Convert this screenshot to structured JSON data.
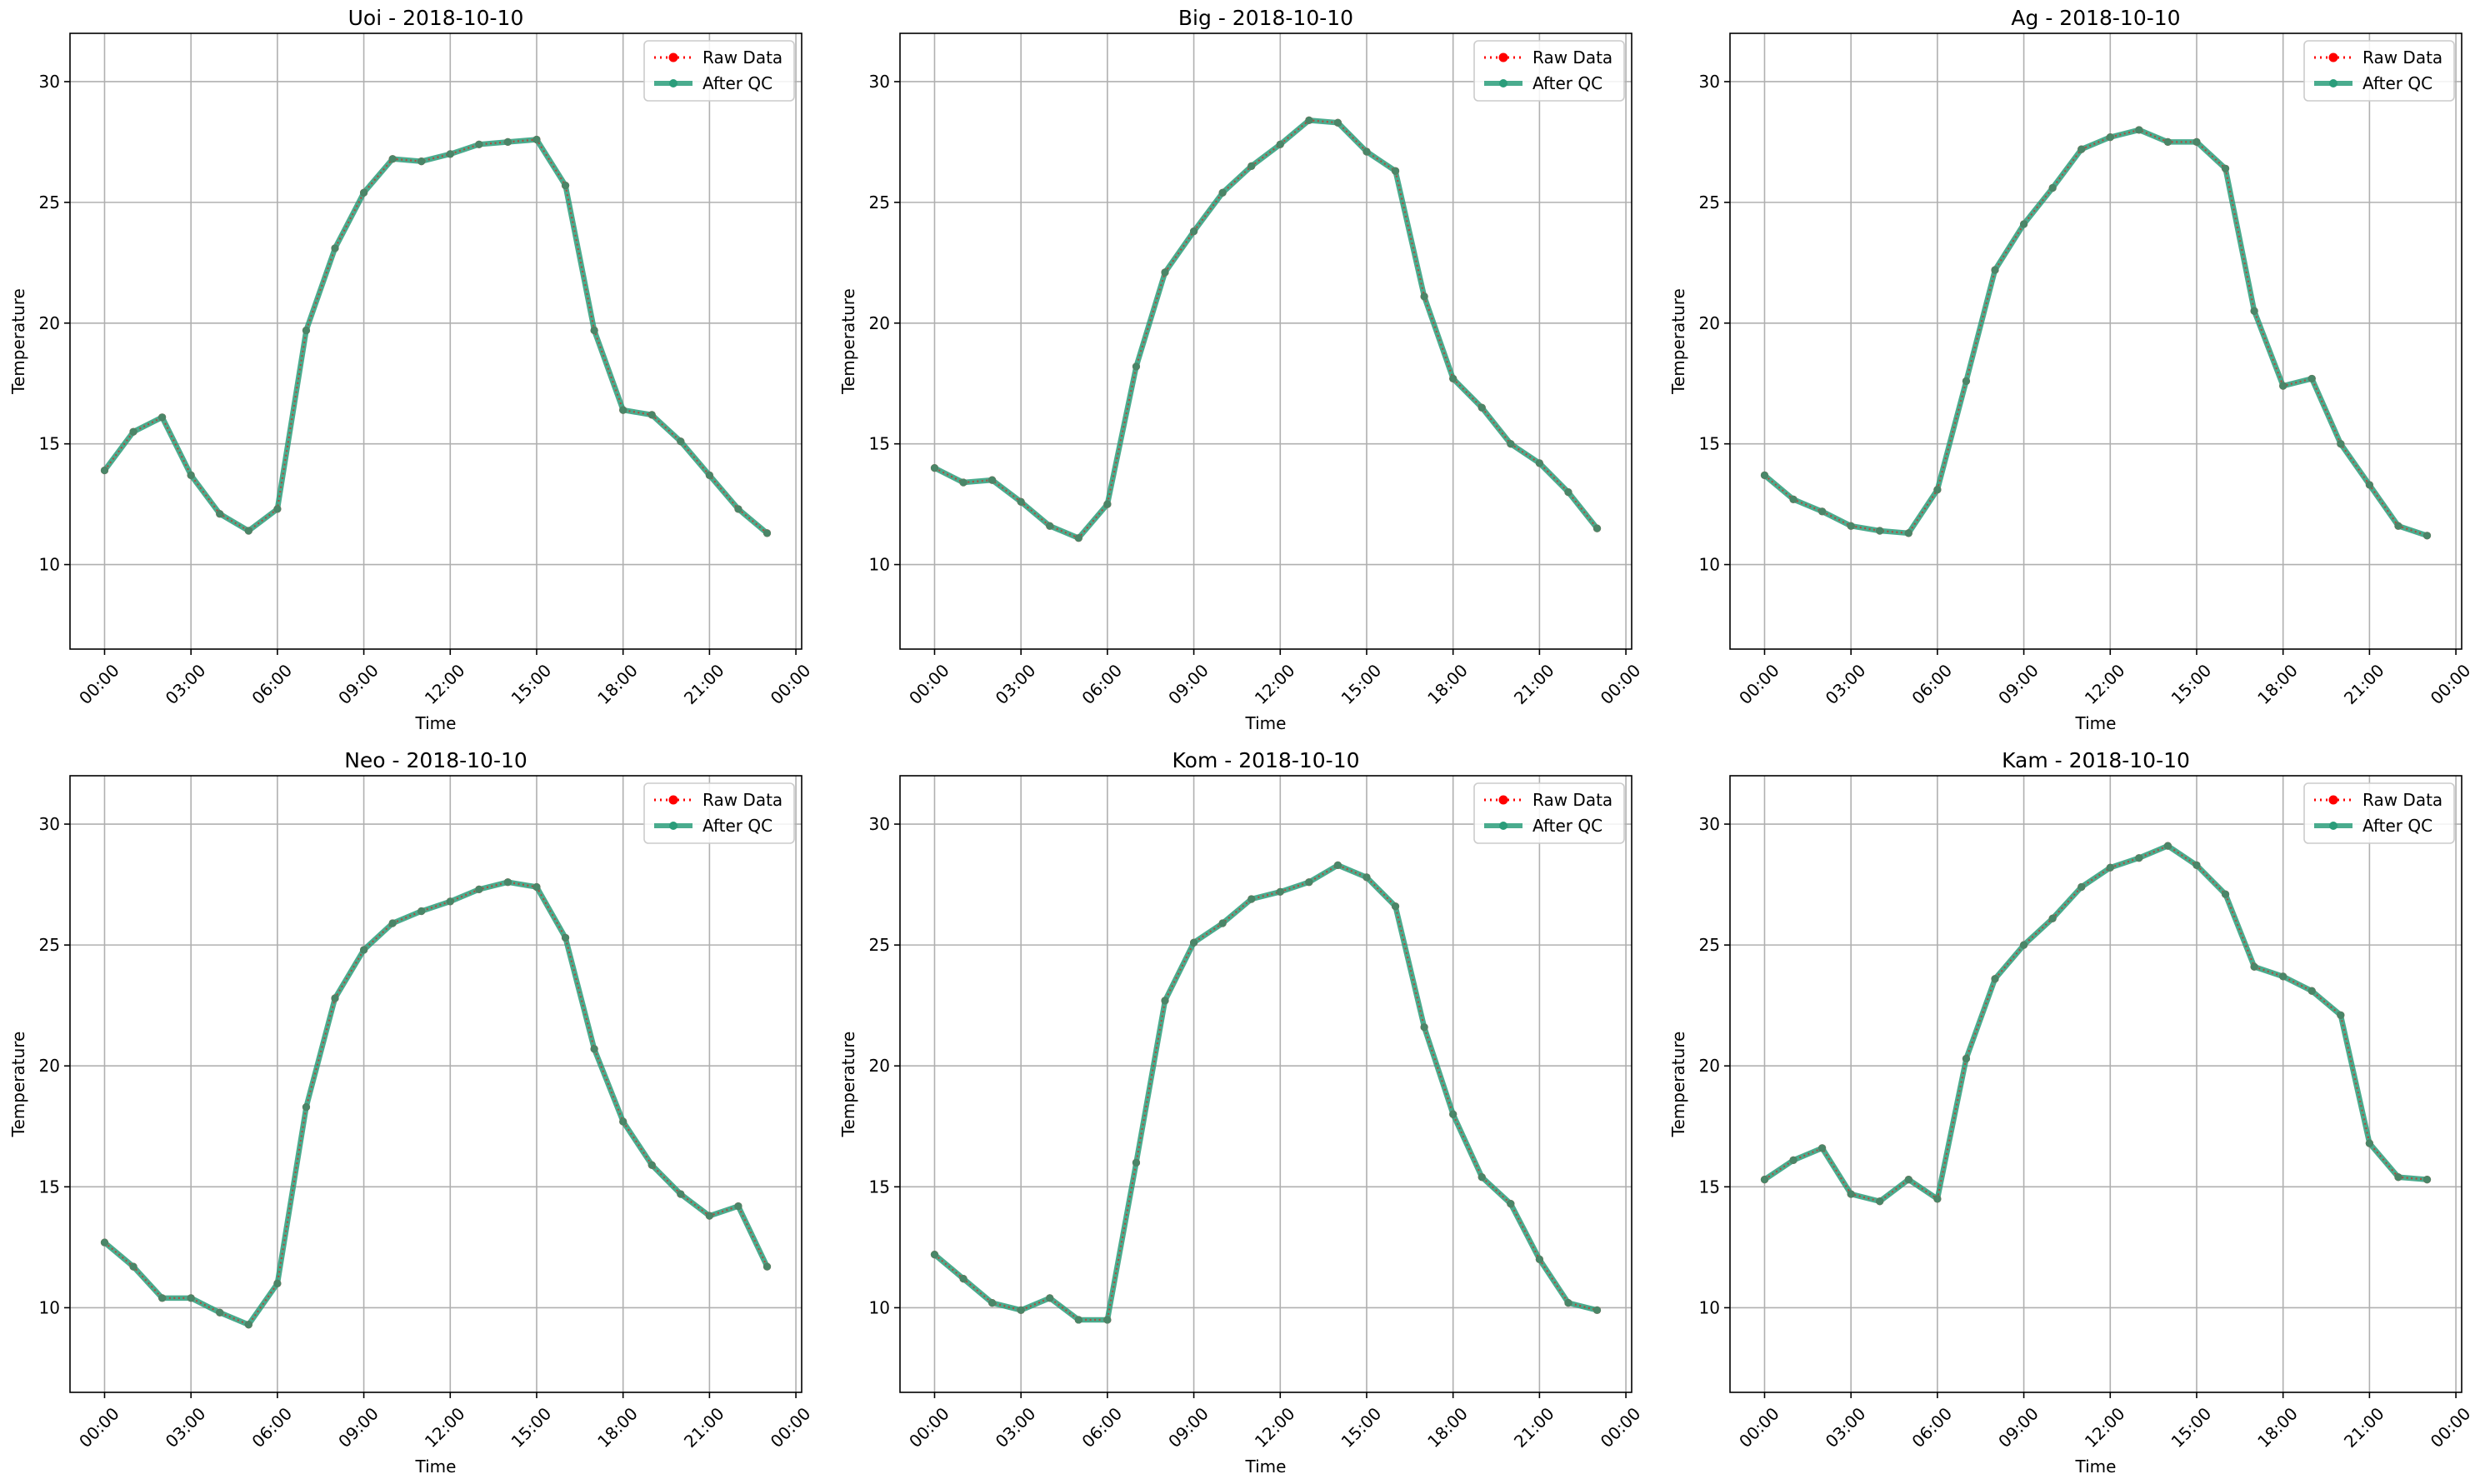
{
  "colors": {
    "raw": "#ff0000",
    "after_qc": "#2a9d7a",
    "grid": "#b0b0b0",
    "axes": "#000000",
    "legend_border": "#cccccc"
  },
  "chart_data": [
    {
      "type": "line",
      "title": "Uoi - 2018-10-10",
      "xlabel": "Time",
      "ylabel": "Temperature",
      "grid": true,
      "legend_position": "top-right",
      "ylim": [
        6.5,
        32
      ],
      "yticks": [
        10,
        15,
        20,
        25,
        30
      ],
      "ytick_labels": [
        "10",
        "15",
        "20",
        "25",
        "30"
      ],
      "xlim_hours": [
        -1.2,
        24.2
      ],
      "xticks_hours": [
        0,
        3,
        6,
        9,
        12,
        15,
        18,
        21,
        24
      ],
      "xtick_labels": [
        "00:00",
        "03:00",
        "06:00",
        "09:00",
        "12:00",
        "15:00",
        "18:00",
        "21:00",
        "00:00"
      ],
      "x": [
        "00:00",
        "01:00",
        "02:00",
        "03:00",
        "04:00",
        "05:00",
        "06:00",
        "07:00",
        "08:00",
        "09:00",
        "10:00",
        "11:00",
        "12:00",
        "13:00",
        "14:00",
        "15:00",
        "16:00",
        "17:00",
        "18:00",
        "19:00",
        "20:00",
        "21:00",
        "22:00",
        "23:00"
      ],
      "series": [
        {
          "name": "Raw Data",
          "style": "dotted-marker",
          "values": [
            13.9,
            15.5,
            16.1,
            13.7,
            12.1,
            11.4,
            12.3,
            19.7,
            23.1,
            25.4,
            26.8,
            26.7,
            27.0,
            27.4,
            27.5,
            27.6,
            25.7,
            19.7,
            16.4,
            16.2,
            15.1,
            13.7,
            12.3,
            11.3
          ]
        },
        {
          "name": "After QC",
          "style": "solid-marker",
          "values": [
            13.9,
            15.5,
            16.1,
            13.7,
            12.1,
            11.4,
            12.3,
            19.7,
            23.1,
            25.4,
            26.8,
            26.7,
            27.0,
            27.4,
            27.5,
            27.6,
            25.7,
            19.7,
            16.4,
            16.2,
            15.1,
            13.7,
            12.3,
            11.3
          ]
        }
      ]
    },
    {
      "type": "line",
      "title": "Big - 2018-10-10",
      "xlabel": "Time",
      "ylabel": "Temperature",
      "grid": true,
      "legend_position": "top-right",
      "ylim": [
        6.5,
        32
      ],
      "yticks": [
        10,
        15,
        20,
        25,
        30
      ],
      "ytick_labels": [
        "10",
        "15",
        "20",
        "25",
        "30"
      ],
      "xlim_hours": [
        -1.2,
        24.2
      ],
      "xticks_hours": [
        0,
        3,
        6,
        9,
        12,
        15,
        18,
        21,
        24
      ],
      "xtick_labels": [
        "00:00",
        "03:00",
        "06:00",
        "09:00",
        "12:00",
        "15:00",
        "18:00",
        "21:00",
        "00:00"
      ],
      "x": [
        "00:00",
        "01:00",
        "02:00",
        "03:00",
        "04:00",
        "05:00",
        "06:00",
        "07:00",
        "08:00",
        "09:00",
        "10:00",
        "11:00",
        "12:00",
        "13:00",
        "14:00",
        "15:00",
        "16:00",
        "17:00",
        "18:00",
        "19:00",
        "20:00",
        "21:00",
        "22:00",
        "23:00"
      ],
      "series": [
        {
          "name": "Raw Data",
          "style": "dotted-marker",
          "values": [
            14.0,
            13.4,
            13.5,
            12.6,
            11.6,
            11.1,
            12.5,
            18.2,
            22.1,
            23.8,
            25.4,
            26.5,
            27.4,
            28.4,
            28.3,
            27.1,
            26.3,
            21.1,
            17.7,
            16.5,
            15.0,
            14.2,
            13.0,
            11.5
          ]
        },
        {
          "name": "After QC",
          "style": "solid-marker",
          "values": [
            14.0,
            13.4,
            13.5,
            12.6,
            11.6,
            11.1,
            12.5,
            18.2,
            22.1,
            23.8,
            25.4,
            26.5,
            27.4,
            28.4,
            28.3,
            27.1,
            26.3,
            21.1,
            17.7,
            16.5,
            15.0,
            14.2,
            13.0,
            11.5
          ]
        }
      ]
    },
    {
      "type": "line",
      "title": "Ag - 2018-10-10",
      "xlabel": "Time",
      "ylabel": "Temperature",
      "grid": true,
      "legend_position": "top-right",
      "ylim": [
        6.5,
        32
      ],
      "yticks": [
        10,
        15,
        20,
        25,
        30
      ],
      "ytick_labels": [
        "10",
        "15",
        "20",
        "25",
        "30"
      ],
      "xlim_hours": [
        -1.2,
        24.2
      ],
      "xticks_hours": [
        0,
        3,
        6,
        9,
        12,
        15,
        18,
        21,
        24
      ],
      "xtick_labels": [
        "00:00",
        "03:00",
        "06:00",
        "09:00",
        "12:00",
        "15:00",
        "18:00",
        "21:00",
        "00:00"
      ],
      "x": [
        "00:00",
        "01:00",
        "02:00",
        "03:00",
        "04:00",
        "05:00",
        "06:00",
        "07:00",
        "08:00",
        "09:00",
        "10:00",
        "11:00",
        "12:00",
        "13:00",
        "14:00",
        "15:00",
        "16:00",
        "17:00",
        "18:00",
        "19:00",
        "20:00",
        "21:00",
        "22:00",
        "23:00"
      ],
      "series": [
        {
          "name": "Raw Data",
          "style": "dotted-marker",
          "values": [
            13.7,
            12.7,
            12.2,
            11.6,
            11.4,
            11.3,
            13.1,
            17.6,
            22.2,
            24.1,
            25.6,
            27.2,
            27.7,
            28.0,
            27.5,
            27.5,
            26.4,
            20.5,
            17.4,
            17.7,
            15.0,
            13.3,
            11.6,
            11.2
          ]
        },
        {
          "name": "After QC",
          "style": "solid-marker",
          "values": [
            13.7,
            12.7,
            12.2,
            11.6,
            11.4,
            11.3,
            13.1,
            17.6,
            22.2,
            24.1,
            25.6,
            27.2,
            27.7,
            28.0,
            27.5,
            27.5,
            26.4,
            20.5,
            17.4,
            17.7,
            15.0,
            13.3,
            11.6,
            11.2
          ]
        }
      ]
    },
    {
      "type": "line",
      "title": "Neo - 2018-10-10",
      "xlabel": "Time",
      "ylabel": "Temperature",
      "grid": true,
      "legend_position": "top-right",
      "ylim": [
        6.5,
        32
      ],
      "yticks": [
        10,
        15,
        20,
        25,
        30
      ],
      "ytick_labels": [
        "10",
        "15",
        "20",
        "25",
        "30"
      ],
      "xlim_hours": [
        -1.2,
        24.2
      ],
      "xticks_hours": [
        0,
        3,
        6,
        9,
        12,
        15,
        18,
        21,
        24
      ],
      "xtick_labels": [
        "00:00",
        "03:00",
        "06:00",
        "09:00",
        "12:00",
        "15:00",
        "18:00",
        "21:00",
        "00:00"
      ],
      "x": [
        "00:00",
        "01:00",
        "02:00",
        "03:00",
        "04:00",
        "05:00",
        "06:00",
        "07:00",
        "08:00",
        "09:00",
        "10:00",
        "11:00",
        "12:00",
        "13:00",
        "14:00",
        "15:00",
        "16:00",
        "17:00",
        "18:00",
        "19:00",
        "20:00",
        "21:00",
        "22:00",
        "23:00"
      ],
      "series": [
        {
          "name": "Raw Data",
          "style": "dotted-marker",
          "values": [
            12.7,
            11.7,
            10.4,
            10.4,
            9.8,
            9.3,
            11.0,
            18.3,
            22.8,
            24.8,
            25.9,
            26.4,
            26.8,
            27.3,
            27.6,
            27.4,
            25.3,
            20.7,
            17.7,
            15.9,
            14.7,
            13.8,
            14.2,
            11.7
          ]
        },
        {
          "name": "After QC",
          "style": "solid-marker",
          "values": [
            12.7,
            11.7,
            10.4,
            10.4,
            9.8,
            9.3,
            11.0,
            18.3,
            22.8,
            24.8,
            25.9,
            26.4,
            26.8,
            27.3,
            27.6,
            27.4,
            25.3,
            20.7,
            17.7,
            15.9,
            14.7,
            13.8,
            14.2,
            11.7
          ]
        }
      ]
    },
    {
      "type": "line",
      "title": "Kom - 2018-10-10",
      "xlabel": "Time",
      "ylabel": "Temperature",
      "grid": true,
      "legend_position": "top-right",
      "ylim": [
        6.5,
        32
      ],
      "yticks": [
        10,
        15,
        20,
        25,
        30
      ],
      "ytick_labels": [
        "10",
        "15",
        "20",
        "25",
        "30"
      ],
      "xlim_hours": [
        -1.2,
        24.2
      ],
      "xticks_hours": [
        0,
        3,
        6,
        9,
        12,
        15,
        18,
        21,
        24
      ],
      "xtick_labels": [
        "00:00",
        "03:00",
        "06:00",
        "09:00",
        "12:00",
        "15:00",
        "18:00",
        "21:00",
        "00:00"
      ],
      "x": [
        "00:00",
        "01:00",
        "02:00",
        "03:00",
        "04:00",
        "05:00",
        "06:00",
        "07:00",
        "08:00",
        "09:00",
        "10:00",
        "11:00",
        "12:00",
        "13:00",
        "14:00",
        "15:00",
        "16:00",
        "17:00",
        "18:00",
        "19:00",
        "20:00",
        "21:00",
        "22:00",
        "23:00"
      ],
      "series": [
        {
          "name": "Raw Data",
          "style": "dotted-marker",
          "values": [
            12.2,
            11.2,
            10.2,
            9.9,
            10.4,
            9.5,
            9.5,
            16.0,
            22.7,
            25.1,
            25.9,
            26.9,
            27.2,
            27.6,
            28.3,
            27.8,
            26.6,
            21.6,
            18.0,
            15.4,
            14.3,
            12.0,
            10.2,
            9.9
          ]
        },
        {
          "name": "After QC",
          "style": "solid-marker",
          "values": [
            12.2,
            11.2,
            10.2,
            9.9,
            10.4,
            9.5,
            9.5,
            16.0,
            22.7,
            25.1,
            25.9,
            26.9,
            27.2,
            27.6,
            28.3,
            27.8,
            26.6,
            21.6,
            18.0,
            15.4,
            14.3,
            12.0,
            10.2,
            9.9
          ]
        }
      ]
    },
    {
      "type": "line",
      "title": "Kam - 2018-10-10",
      "xlabel": "Time",
      "ylabel": "Temperature",
      "grid": true,
      "legend_position": "top-right",
      "ylim": [
        6.5,
        32
      ],
      "yticks": [
        10,
        15,
        20,
        25,
        30
      ],
      "ytick_labels": [
        "10",
        "15",
        "20",
        "25",
        "30"
      ],
      "xlim_hours": [
        -1.2,
        24.2
      ],
      "xticks_hours": [
        0,
        3,
        6,
        9,
        12,
        15,
        18,
        21,
        24
      ],
      "xtick_labels": [
        "00:00",
        "03:00",
        "06:00",
        "09:00",
        "12:00",
        "15:00",
        "18:00",
        "21:00",
        "00:00"
      ],
      "x": [
        "00:00",
        "01:00",
        "02:00",
        "03:00",
        "04:00",
        "05:00",
        "06:00",
        "07:00",
        "08:00",
        "09:00",
        "10:00",
        "11:00",
        "12:00",
        "13:00",
        "14:00",
        "15:00",
        "16:00",
        "17:00",
        "18:00",
        "19:00",
        "20:00",
        "21:00",
        "22:00",
        "23:00"
      ],
      "series": [
        {
          "name": "Raw Data",
          "style": "dotted-marker",
          "values": [
            15.3,
            16.1,
            16.6,
            14.7,
            14.4,
            15.3,
            14.5,
            20.3,
            23.6,
            25.0,
            26.1,
            27.4,
            28.2,
            28.6,
            29.1,
            28.3,
            27.1,
            24.1,
            23.7,
            23.1,
            22.1,
            16.8,
            15.4,
            15.3
          ]
        },
        {
          "name": "After QC",
          "style": "solid-marker",
          "values": [
            15.3,
            16.1,
            16.6,
            14.7,
            14.4,
            15.3,
            14.5,
            20.3,
            23.6,
            25.0,
            26.1,
            27.4,
            28.2,
            28.6,
            29.1,
            28.3,
            27.1,
            24.1,
            23.7,
            23.1,
            22.1,
            16.8,
            15.4,
            15.3
          ]
        }
      ]
    }
  ]
}
